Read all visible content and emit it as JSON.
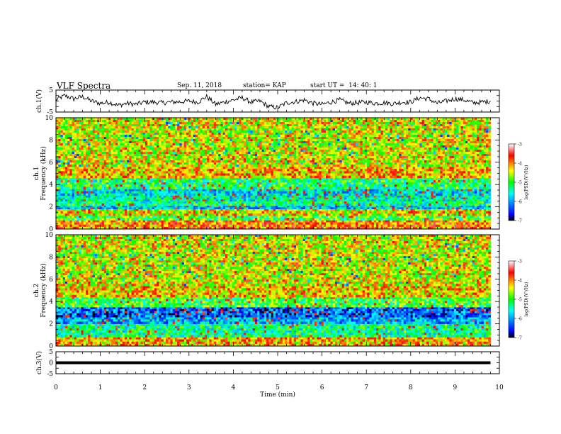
{
  "header": {
    "title": "VLF Spectra",
    "date": "Sep. 11, 2018",
    "station": "station= KAP",
    "start": "start UT =  14: 40: 1"
  },
  "chart_data": [
    {
      "type": "line",
      "ylabel": "ch.1(V)",
      "xlim": [
        0,
        10
      ],
      "ylim": [
        -5,
        5
      ],
      "ytick_labels": [
        "5",
        "-5"
      ],
      "data_extent_min": 9.8,
      "series": [
        {
          "x": [
            0.0,
            0.2,
            0.4,
            0.6,
            0.8,
            1.0,
            1.2,
            1.4,
            1.6,
            1.8,
            2.0,
            2.2,
            2.4,
            2.6,
            2.8,
            3.0,
            3.2,
            3.4,
            3.6,
            3.8,
            4.0,
            4.2,
            4.4,
            4.6,
            4.8,
            5.0,
            5.2,
            5.4,
            5.6,
            5.8,
            6.0,
            6.2,
            6.4,
            6.6,
            6.8,
            7.0,
            7.2,
            7.4,
            7.6,
            7.8,
            8.0,
            8.2,
            8.4,
            8.6,
            8.8,
            9.0,
            9.2,
            9.4,
            9.6,
            9.8
          ],
          "y": [
            0.5,
            2.5,
            1.0,
            2.0,
            0.0,
            -1.0,
            -0.5,
            -2.0,
            -1.0,
            -1.5,
            -0.5,
            -0.5,
            -0.8,
            -0.5,
            -0.3,
            0.0,
            -0.5,
            2.0,
            -1.5,
            -0.5,
            0.5,
            1.5,
            -0.5,
            0.0,
            -2.5,
            -3.0,
            -0.8,
            -0.3,
            0.5,
            -1.0,
            -1.5,
            -0.5,
            0.5,
            -1.0,
            -0.8,
            -0.5,
            -1.0,
            -0.8,
            -1.2,
            -0.5,
            -0.5,
            1.5,
            1.0,
            -1.0,
            0.0,
            1.0,
            0.5,
            -0.8,
            -0.5,
            0.0
          ]
        }
      ]
    },
    {
      "type": "heatmap",
      "ylabel": "ch.1 Frequency (kHz)",
      "xlim": [
        0,
        10
      ],
      "ylim": [
        0,
        10
      ],
      "ytick_labels": [
        "0",
        "2",
        "4",
        "6",
        "8",
        "10"
      ],
      "data_extent_min": 9.8,
      "bands": [
        {
          "f": [
            0.0,
            0.8
          ],
          "level": -4.0
        },
        {
          "f": [
            0.8,
            1.2
          ],
          "level": -5.0
        },
        {
          "f": [
            1.2,
            1.8
          ],
          "level": -4.4
        },
        {
          "f": [
            1.8,
            2.1
          ],
          "level": -5.8
        },
        {
          "f": [
            2.1,
            2.5
          ],
          "level": -5.3
        },
        {
          "f": [
            2.5,
            3.0
          ],
          "level": -5.5
        },
        {
          "f": [
            3.0,
            3.6
          ],
          "level": -5.7
        },
        {
          "f": [
            3.6,
            4.6
          ],
          "level": -5.2
        },
        {
          "f": [
            4.6,
            5.6
          ],
          "level": -4.2
        },
        {
          "f": [
            5.6,
            10.0
          ],
          "level": -4.5
        }
      ],
      "colorbar": {
        "label": "log(PSD)(V²/Hz)",
        "range": [
          -7,
          -3
        ],
        "tick_labels": [
          "-3",
          "-4",
          "-5",
          "-6",
          "-7"
        ]
      }
    },
    {
      "type": "heatmap",
      "ylabel": "ch.2 Frequency (kHz)",
      "xlim": [
        0,
        10
      ],
      "ylim": [
        0,
        10
      ],
      "ytick_labels": [
        "0",
        "2",
        "4",
        "6",
        "8",
        "10"
      ],
      "data_extent_min": 9.8,
      "bands": [
        {
          "f": [
            0.0,
            0.8
          ],
          "level": -4.2
        },
        {
          "f": [
            0.8,
            2.0
          ],
          "level": -5.3
        },
        {
          "f": [
            2.0,
            2.6
          ],
          "level": -5.9
        },
        {
          "f": [
            2.6,
            3.5
          ],
          "level": -6.3
        },
        {
          "f": [
            3.5,
            4.4
          ],
          "level": -5.0
        },
        {
          "f": [
            4.4,
            5.4
          ],
          "level": -4.3
        },
        {
          "f": [
            5.4,
            10.0
          ],
          "level": -4.5
        }
      ],
      "colorbar": {
        "label": "log(PSD)(V²/Hz)",
        "range": [
          -7,
          -3
        ],
        "tick_labels": [
          "-3",
          "-4",
          "-5",
          "-6",
          "-7"
        ]
      }
    },
    {
      "type": "line",
      "ylabel": "ch.3(V)",
      "xlabel": "Time (min)",
      "xlim": [
        0,
        10
      ],
      "ylim": [
        -5,
        5
      ],
      "ytick_labels": [
        "5",
        "0",
        "-5"
      ],
      "x_tick_labels": [
        "0",
        "1",
        "2",
        "3",
        "4",
        "5",
        "6",
        "7",
        "8",
        "9",
        "10"
      ],
      "data_extent_min": 9.8,
      "series": [
        {
          "x": [
            0,
            9.8
          ],
          "y": [
            0,
            0
          ]
        }
      ]
    }
  ]
}
